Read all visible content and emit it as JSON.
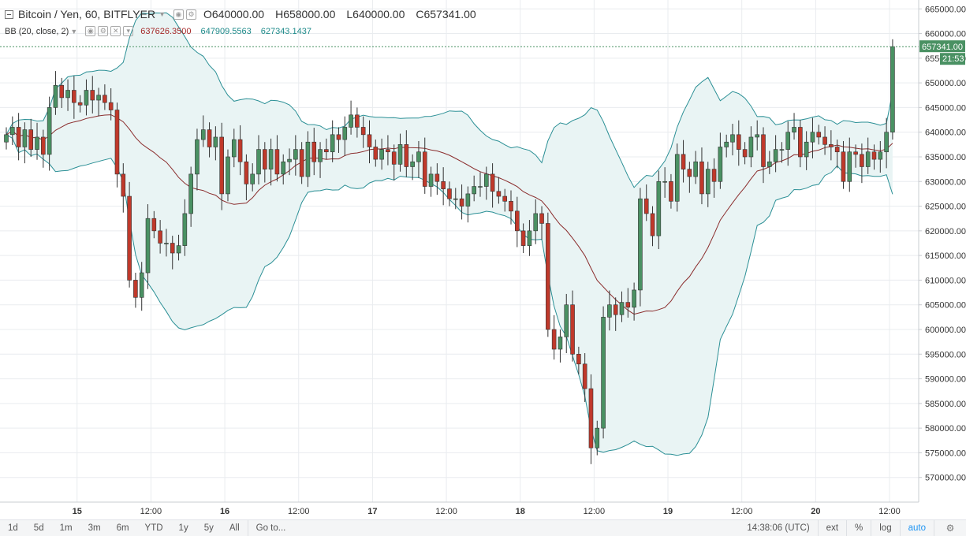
{
  "header": {
    "symbol": "Bitcoin / Yen, 60, BITFLYER",
    "ohlc": [
      {
        "k": "O",
        "v": "640000.00"
      },
      {
        "k": "H",
        "v": "658000.00"
      },
      {
        "k": "L",
        "v": "640000.00"
      },
      {
        "k": "C",
        "v": "657341.00"
      }
    ],
    "indicator": {
      "name": "BB (20, close, 2)",
      "basis": "637626.3500",
      "upper": "647909.5563",
      "lower": "627343.1437"
    }
  },
  "colors": {
    "up": "#4a9163",
    "down": "#c0392b",
    "band": "#2a8f95",
    "band_fill": "#e9f4f4",
    "basis": "#8b2d2d",
    "grid": "#e9ecef",
    "price_tag": "#4a9163"
  },
  "toolbar": {
    "ranges": [
      "1d",
      "5d",
      "1m",
      "3m",
      "6m",
      "YTD",
      "1y",
      "5y",
      "All"
    ],
    "goto": "Go to...",
    "time": "14:38:06 (UTC)",
    "ext": "ext",
    "percent": "%",
    "log": "log",
    "auto": "auto"
  },
  "chart_data": {
    "type": "candlestick",
    "title": "Bitcoin / Yen, 60, BITFLYER",
    "y_ticks": [
      570000,
      575000,
      580000,
      585000,
      590000,
      595000,
      600000,
      605000,
      610000,
      615000,
      620000,
      625000,
      630000,
      635000,
      640000,
      645000,
      650000,
      655000,
      660000,
      665000
    ],
    "y_tick_labels": [
      "570000.00",
      "575000.00",
      "580000.00",
      "585000.00",
      "590000.00",
      "595000.00",
      "600000.00",
      "605000.00",
      "610000.00",
      "615000.00",
      "620000.00",
      "625000.00",
      "630000.00",
      "635000.00",
      "640000.00",
      "645000.00",
      "650000.00",
      "655000.00",
      "660000.00",
      "665000.00"
    ],
    "ylim": [
      565000,
      666800
    ],
    "x_ticks": [
      {
        "label": "15",
        "bold": true,
        "index": 11.5
      },
      {
        "label": "12:00",
        "bold": false,
        "index": 23.5
      },
      {
        "label": "16",
        "bold": true,
        "index": 35.5
      },
      {
        "label": "12:00",
        "bold": false,
        "index": 47.5
      },
      {
        "label": "17",
        "bold": true,
        "index": 59.5
      },
      {
        "label": "12:00",
        "bold": false,
        "index": 71.5
      },
      {
        "label": "18",
        "bold": true,
        "index": 83.5
      },
      {
        "label": "12:00",
        "bold": false,
        "index": 95.5
      },
      {
        "label": "19",
        "bold": true,
        "index": 107.5
      },
      {
        "label": "12:00",
        "bold": false,
        "index": 119.5
      },
      {
        "label": "20",
        "bold": true,
        "index": 131.5
      },
      {
        "label": "12:00",
        "bold": false,
        "index": 143.5
      }
    ],
    "last_price": 657341,
    "last_price_label": "657341.00",
    "countdown": "21:53",
    "close": [
      639500,
      641000,
      637000,
      640500,
      636500,
      639000,
      635500,
      645000,
      649500,
      647000,
      648500,
      646000,
      645500,
      648500,
      646500,
      647500,
      646000,
      644500,
      631500,
      627000,
      610000,
      606500,
      611500,
      622500,
      620000,
      617500,
      617500,
      615500,
      617000,
      623500,
      631500,
      638500,
      640500,
      637000,
      639000,
      627500,
      635000,
      638500,
      634000,
      629500,
      631500,
      636500,
      632500,
      636500,
      631500,
      634000,
      634500,
      636500,
      631000,
      638000,
      634000,
      636500,
      636000,
      639500,
      638500,
      641000,
      643500,
      641000,
      639500,
      637000,
      634500,
      636500,
      636000,
      633500,
      637500,
      633000,
      634000,
      636000,
      629000,
      631500,
      630000,
      628500,
      626500,
      626500,
      625000,
      627500,
      629000,
      629000,
      631500,
      628000,
      627000,
      626000,
      624000,
      620000,
      617000,
      620000,
      623500,
      621500,
      600000,
      596000,
      598500,
      605000,
      595000,
      593000,
      588000,
      576000,
      580000,
      602500,
      605000,
      603000,
      605500,
      604500,
      608000,
      626500,
      623500,
      619000,
      630000,
      630000,
      626000,
      635500,
      632500,
      631000,
      634000,
      627500,
      632500,
      630000,
      637000,
      638000,
      639500,
      636500,
      635000,
      639000,
      639500,
      633000,
      634000,
      636500,
      636500,
      640000,
      641000,
      635000,
      638000,
      640000,
      639000,
      637500,
      637000,
      636000,
      630000,
      636000,
      635500,
      633000,
      636000,
      634500,
      636000,
      640000,
      657341
    ]
  }
}
